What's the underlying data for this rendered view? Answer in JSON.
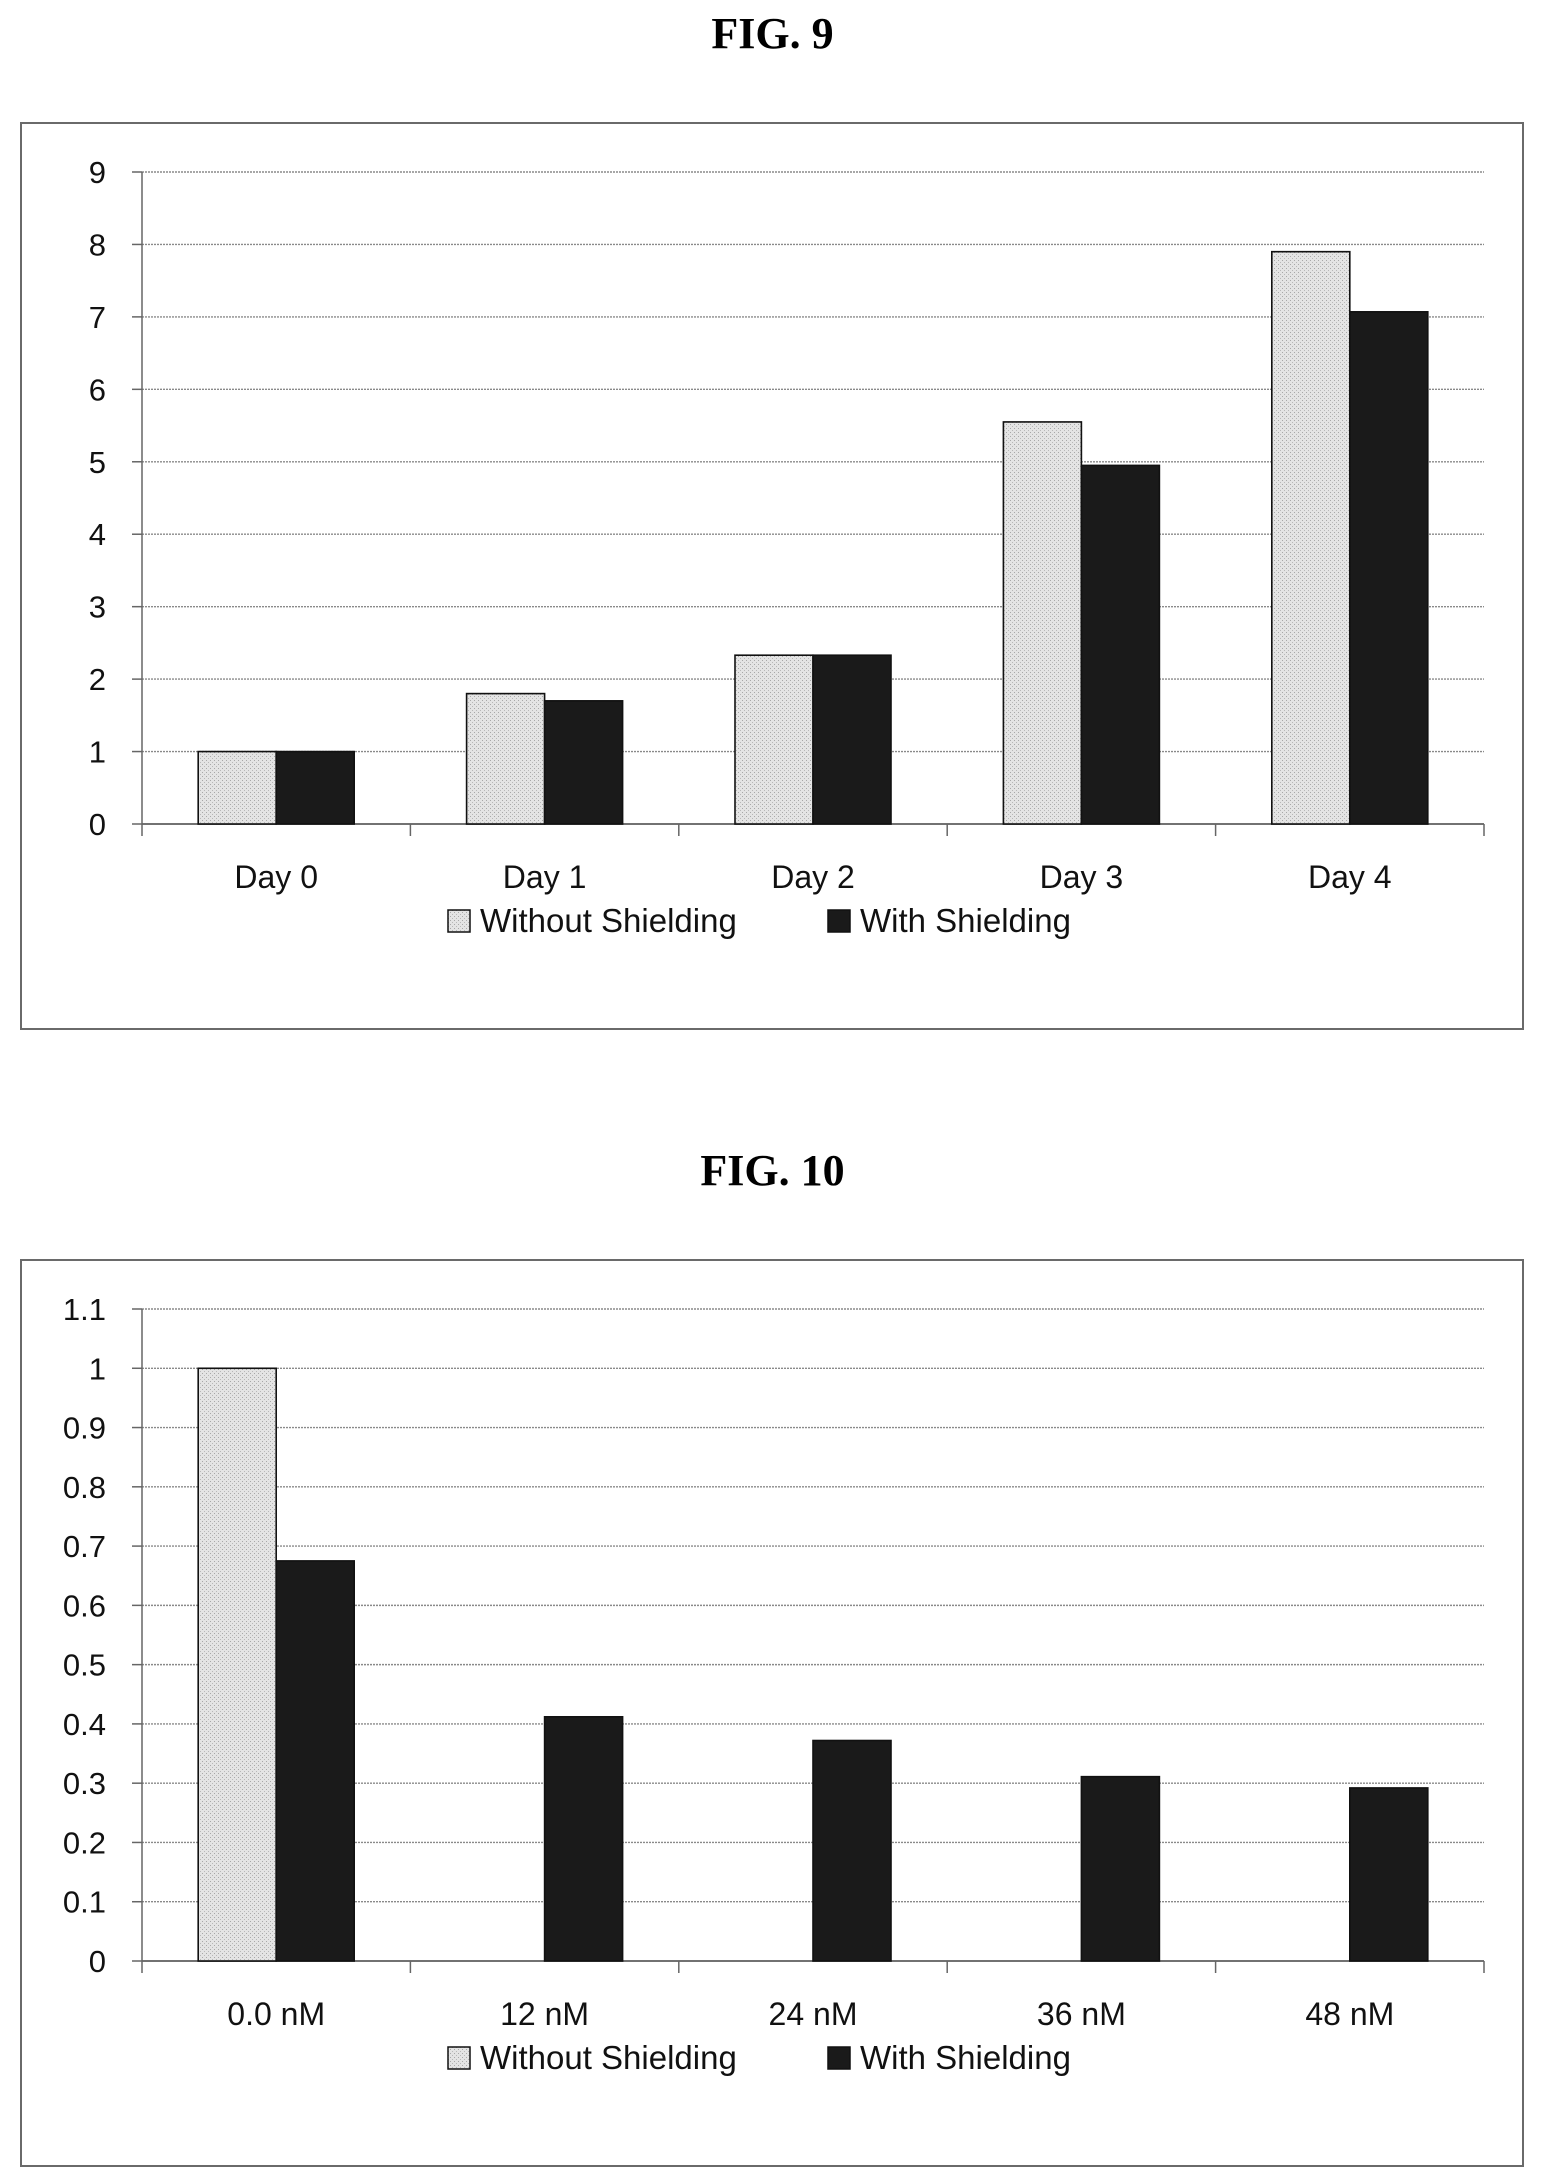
{
  "figures": [
    {
      "title": "FIG. 9"
    },
    {
      "title": "FIG. 10"
    }
  ],
  "colors": {
    "without_shielding": "#e4e4e4",
    "with_shielding": "#1a1a1a",
    "grid": "#8a8a8a",
    "frame": "#6a6a6a"
  },
  "chart_data": [
    {
      "type": "bar",
      "title": "",
      "xlabel": "",
      "ylabel": "",
      "categories": [
        "Day 0",
        "Day 1",
        "Day 2",
        "Day 3",
        "Day 4"
      ],
      "series": [
        {
          "name": "Without Shielding",
          "values": [
            1.0,
            1.8,
            2.33,
            5.55,
            7.9
          ]
        },
        {
          "name": "With Shielding",
          "values": [
            1.0,
            1.7,
            2.33,
            4.95,
            7.07
          ]
        }
      ],
      "ylim": [
        0,
        9
      ],
      "yticks": [
        "0",
        "1",
        "2",
        "3",
        "4",
        "5",
        "6",
        "7",
        "8",
        "9"
      ],
      "grid": true,
      "legend": "bottom"
    },
    {
      "type": "bar",
      "title": "",
      "xlabel": "",
      "ylabel": "",
      "categories": [
        "0.0 nM",
        "12 nM",
        "24 nM",
        "36 nM",
        "48 nM"
      ],
      "series": [
        {
          "name": "Without Shielding",
          "values": [
            1.0,
            0,
            0,
            0,
            0
          ]
        },
        {
          "name": "With Shielding",
          "values": [
            0.675,
            0.412,
            0.372,
            0.311,
            0.292
          ]
        }
      ],
      "ylim": [
        0,
        1.1
      ],
      "yticks": [
        "0",
        "0.1",
        "0.2",
        "0.3",
        "0.4",
        "0.5",
        "0.6",
        "0.7",
        "0.8",
        "0.9",
        "1",
        "1.1"
      ],
      "grid": true,
      "legend": "bottom"
    }
  ]
}
